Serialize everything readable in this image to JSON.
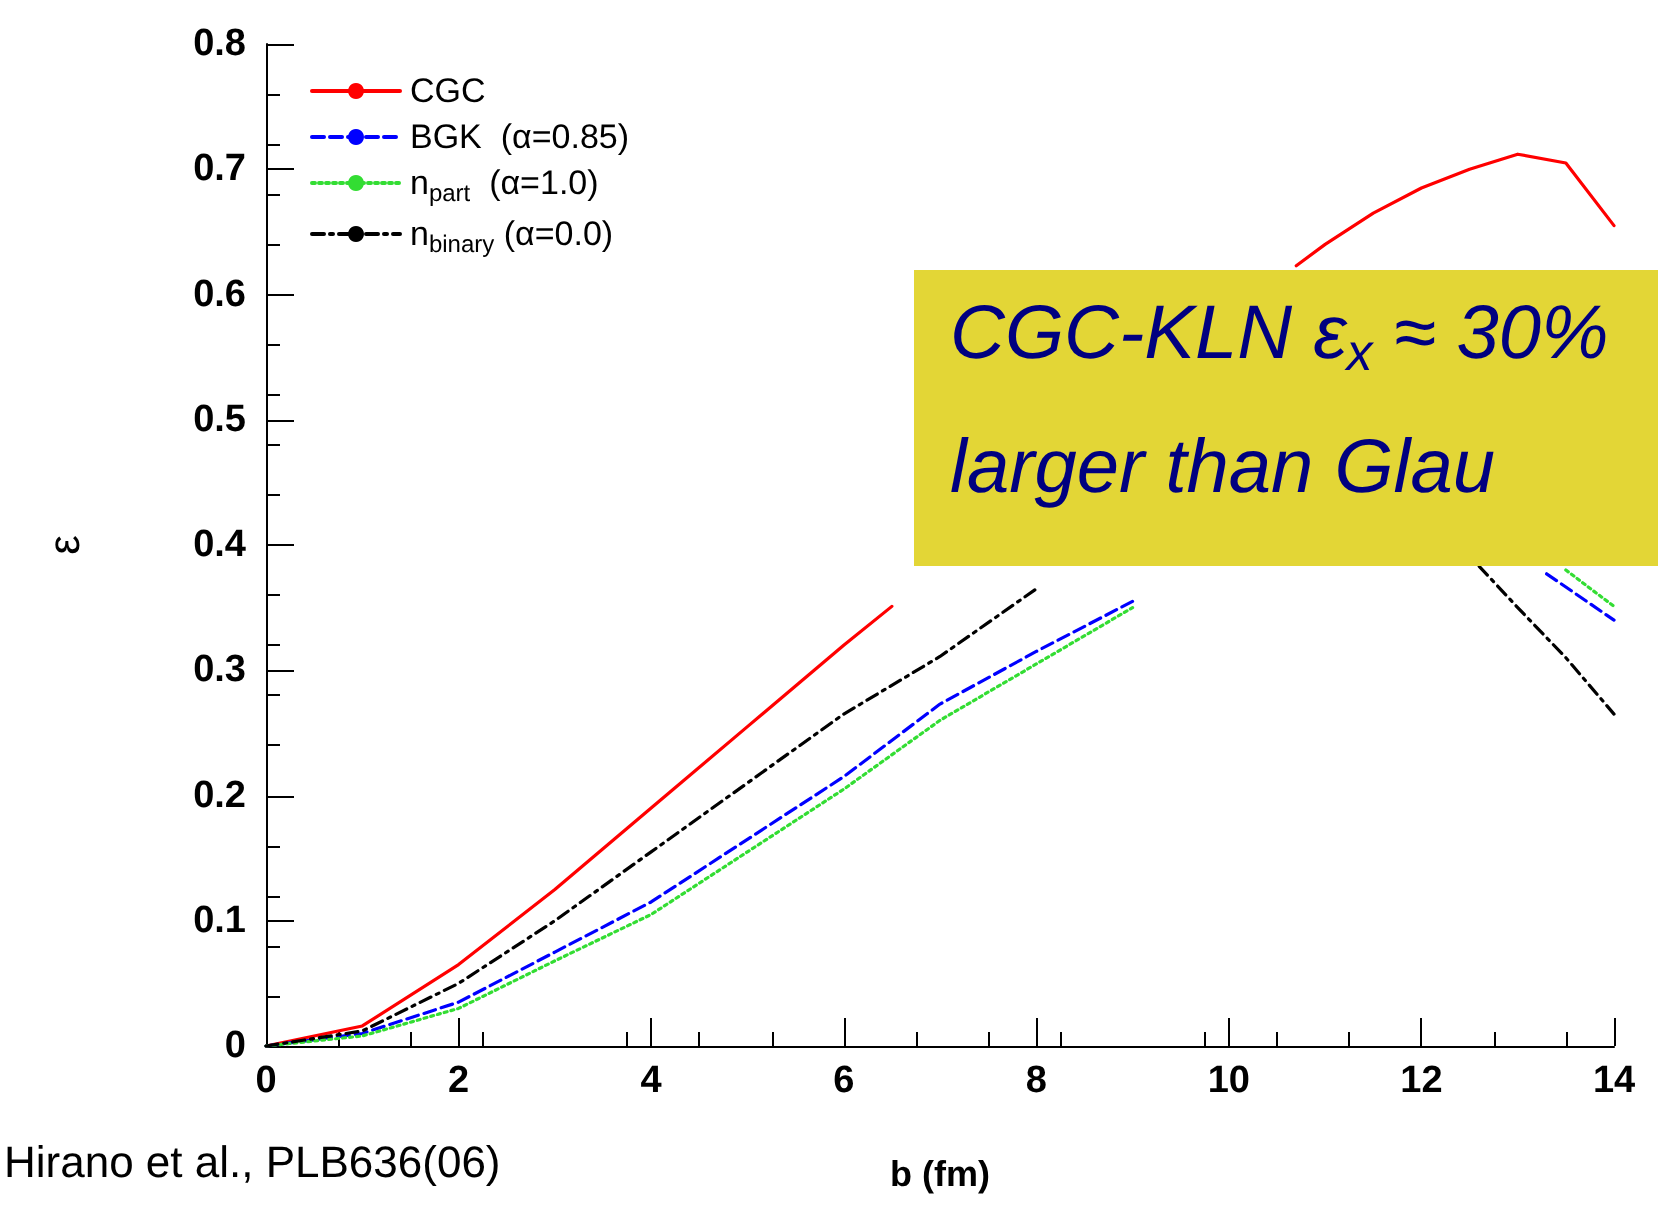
{
  "chart_data": {
    "type": "line",
    "xlabel": "b (fm)",
    "ylabel": "ε",
    "xlim": [
      0,
      14
    ],
    "xticks": [
      0,
      2,
      4,
      6,
      8,
      10,
      12,
      14
    ],
    "ylim": [
      0,
      0.8
    ],
    "yticks": [
      0,
      0.1,
      0.2,
      0.3,
      0.4,
      0.5,
      0.6,
      0.7,
      0.8
    ],
    "grid": false,
    "legend": "top left",
    "marker": "none",
    "annotations": [
      "CGC-KLN ε$_{x}$ ≈ 30%",
      "larger than Glau",
      "Hirano et al., PLB636(06)"
    ],
    "series": [
      {
        "name": "CGC",
        "color": "#ff0000",
        "line_style": "solid",
        "x": [
          0,
          1,
          2,
          3,
          4,
          5,
          6,
          6.5,
          7,
          8,
          9,
          10,
          10.7,
          11,
          11.5,
          12,
          12.5,
          13,
          13.5,
          14
        ],
        "values": [
          0,
          0.016,
          0.065,
          0.125,
          0.19,
          0.255,
          0.32,
          0.351,
          null,
          null,
          null,
          null,
          0.623,
          0.64,
          0.665,
          0.685,
          0.7,
          0.712,
          0.705,
          0.655
        ]
      },
      {
        "name": "BGK  (α=0.85)",
        "color": "#0000ff",
        "line_style": "dashed",
        "x": [
          0,
          1,
          2,
          3,
          4,
          5,
          6,
          7,
          8,
          9,
          10,
          11,
          12,
          13.3,
          14
        ],
        "values": [
          0,
          0.01,
          0.035,
          0.075,
          0.115,
          0.165,
          0.215,
          0.273,
          0.315,
          0.355,
          null,
          null,
          null,
          0.377,
          0.34
        ]
      },
      {
        "name": "n$_{part}$  (α=1.0)",
        "color": "#33dd33",
        "line_style": "dotted",
        "x": [
          0,
          1,
          2,
          3,
          4,
          5,
          6,
          7,
          8,
          9,
          10,
          11,
          12,
          13.5,
          14
        ],
        "values": [
          0,
          0.008,
          0.03,
          0.068,
          0.105,
          0.155,
          0.205,
          0.26,
          0.305,
          0.35,
          null,
          null,
          null,
          0.38,
          0.351
        ]
      },
      {
        "name": "n$_{binary}$ (α=0.0)",
        "color": "#000000",
        "line_style": "dashdot",
        "x": [
          0,
          1,
          2,
          3,
          4,
          5,
          6,
          7,
          8,
          9,
          10,
          11,
          12,
          12.6,
          13,
          13.5,
          14
        ],
        "values": [
          0,
          0.012,
          0.05,
          0.1,
          0.155,
          0.21,
          0.265,
          0.311,
          0.365,
          null,
          null,
          null,
          null,
          0.383,
          0.35,
          0.31,
          0.265
        ]
      }
    ]
  }
}
